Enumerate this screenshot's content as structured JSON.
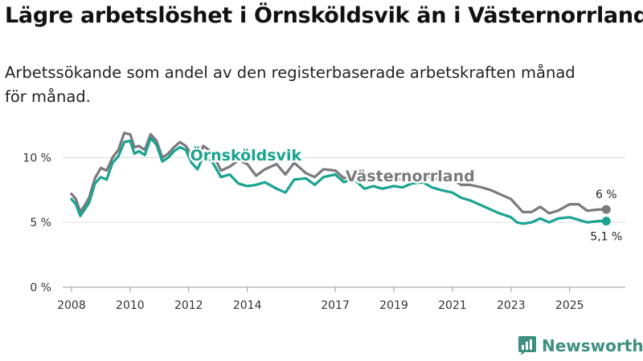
{
  "title": "Lägre arbetslöshet i Örnsköldsvik än i Västernorrland",
  "subtitle_line1": "Arbetssökande som andel av den registerbaserade arbetskraften månad",
  "subtitle_line2": "för månad.",
  "brand": "Newsworthy",
  "colors": {
    "ornskoldsvik": "#1aa391",
    "vasternorrland": "#7a7a7e",
    "grid": "#dddddd"
  },
  "chart_data": {
    "type": "line",
    "title": "Lägre arbetslöshet i Örnsköldsvik än i Västernorrland",
    "subtitle": "Arbetssökande som andel av den registerbaserade arbetskraften månad för månad.",
    "ylim": [
      0,
      13
    ],
    "xlim": [
      2007.7,
      2026.9
    ],
    "yticks": [
      0,
      5,
      10
    ],
    "ytick_labels": [
      "0 %",
      "5 %",
      "10 %"
    ],
    "xticks": [
      2008,
      2010,
      2012,
      2014,
      2017,
      2019,
      2021,
      2023,
      2025
    ],
    "xtick_labels": [
      "2008",
      "2010",
      "2012",
      "2014",
      "2017",
      "2019",
      "2021",
      "2023",
      "2025"
    ],
    "series": [
      {
        "name": "Västernorrland",
        "label": "Västernorrland",
        "end_label": "6 %",
        "x": [
          2008.0,
          2008.15,
          2008.3,
          2008.45,
          2008.6,
          2008.8,
          2009.0,
          2009.2,
          2009.4,
          2009.6,
          2009.8,
          2010.0,
          2010.15,
          2010.3,
          2010.5,
          2010.7,
          2010.9,
          2011.1,
          2011.3,
          2011.5,
          2011.7,
          2011.9,
          2012.1,
          2012.3,
          2012.5,
          2012.8,
          2013.1,
          2013.4,
          2013.7,
          2014.0,
          2014.3,
          2014.6,
          2015.0,
          2015.3,
          2015.6,
          2016.0,
          2016.3,
          2016.6,
          2017.0,
          2017.3,
          2017.6,
          2018.0,
          2018.3,
          2018.6,
          2019.0,
          2019.3,
          2019.6,
          2020.0,
          2020.3,
          2020.6,
          2021.0,
          2021.3,
          2021.6,
          2022.0,
          2022.3,
          2022.6,
          2023.0,
          2023.2,
          2023.4,
          2023.7,
          2024.0,
          2024.3,
          2024.6,
          2025.0,
          2025.3,
          2025.6,
          2026.0,
          2026.25
        ],
        "values": [
          7.2,
          6.8,
          5.8,
          6.3,
          6.9,
          8.4,
          9.2,
          9.0,
          10.0,
          10.6,
          11.9,
          11.8,
          10.8,
          10.9,
          10.6,
          11.8,
          11.3,
          10.0,
          10.3,
          10.8,
          11.2,
          10.9,
          10.2,
          9.8,
          10.9,
          10.4,
          9.0,
          9.3,
          9.8,
          9.5,
          8.6,
          9.1,
          9.5,
          8.7,
          9.6,
          8.8,
          8.5,
          9.1,
          9.0,
          8.4,
          8.7,
          8.3,
          8.4,
          8.2,
          8.4,
          8.3,
          8.5,
          8.6,
          8.4,
          8.3,
          8.3,
          7.9,
          7.9,
          7.7,
          7.5,
          7.2,
          6.8,
          6.3,
          5.8,
          5.8,
          6.2,
          5.7,
          5.9,
          6.4,
          6.4,
          5.9,
          6.0,
          6.0
        ]
      },
      {
        "name": "Örnsköldsvik",
        "label": "Örnsköldsvik",
        "end_label": "5,1 %",
        "x": [
          2008.0,
          2008.15,
          2008.3,
          2008.45,
          2008.6,
          2008.8,
          2009.0,
          2009.2,
          2009.4,
          2009.6,
          2009.8,
          2010.0,
          2010.15,
          2010.3,
          2010.5,
          2010.7,
          2010.9,
          2011.1,
          2011.3,
          2011.5,
          2011.7,
          2011.9,
          2012.1,
          2012.3,
          2012.5,
          2012.8,
          2013.1,
          2013.4,
          2013.7,
          2014.0,
          2014.3,
          2014.6,
          2015.0,
          2015.3,
          2015.6,
          2016.0,
          2016.3,
          2016.6,
          2017.0,
          2017.3,
          2017.6,
          2018.0,
          2018.3,
          2018.6,
          2019.0,
          2019.3,
          2019.6,
          2020.0,
          2020.3,
          2020.6,
          2021.0,
          2021.3,
          2021.6,
          2022.0,
          2022.3,
          2022.6,
          2023.0,
          2023.2,
          2023.4,
          2023.7,
          2024.0,
          2024.3,
          2024.6,
          2025.0,
          2025.3,
          2025.6,
          2026.0,
          2026.25
        ],
        "values": [
          6.8,
          6.4,
          5.5,
          6.0,
          6.5,
          8.0,
          8.5,
          8.3,
          9.6,
          10.1,
          11.2,
          11.3,
          10.3,
          10.5,
          10.2,
          11.5,
          11.0,
          9.7,
          10.0,
          10.5,
          10.8,
          10.6,
          9.6,
          9.1,
          10.1,
          9.7,
          8.5,
          8.7,
          8.0,
          7.8,
          7.9,
          8.1,
          7.6,
          7.3,
          8.3,
          8.4,
          7.9,
          8.5,
          8.7,
          8.1,
          8.4,
          7.6,
          7.8,
          7.6,
          7.8,
          7.7,
          8.0,
          8.1,
          7.7,
          7.5,
          7.3,
          6.9,
          6.7,
          6.3,
          6.0,
          5.7,
          5.4,
          5.0,
          4.9,
          5.0,
          5.3,
          5.0,
          5.3,
          5.4,
          5.2,
          5.0,
          5.1,
          5.1
        ]
      }
    ]
  }
}
